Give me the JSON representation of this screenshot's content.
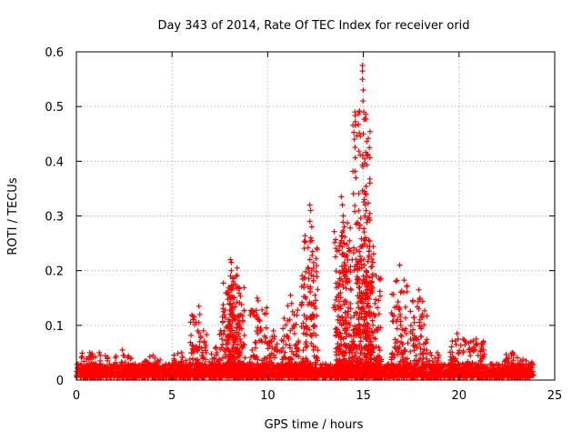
{
  "chart_data": {
    "type": "scatter",
    "title": "Day 343 of 2014, Rate Of TEC Index for receiver orid",
    "xlabel": "GPS time / hours",
    "ylabel": "ROTI / TECUs",
    "xlim": [
      0,
      25
    ],
    "ylim": [
      0,
      0.6
    ],
    "xticks": [
      0,
      5,
      10,
      15,
      20,
      25
    ],
    "xtick_labels": [
      "0",
      "5",
      "10",
      "15",
      "20",
      "25"
    ],
    "yticks": [
      0,
      0.1,
      0.2,
      0.3,
      0.4,
      0.5,
      0.6
    ],
    "ytick_labels": [
      "0",
      "0.1",
      "0.2",
      "0.3",
      "0.4",
      "0.5",
      "0.6"
    ],
    "grid": true,
    "marker": "+",
    "color": "#ff0000",
    "x_data_range": [
      0,
      23.8
    ],
    "baseline": {
      "typical_max": 0.03,
      "typical_min": 0.005
    },
    "features": [
      {
        "x": 0.7,
        "peak": 0.05
      },
      {
        "x": 1.2,
        "peak": 0.05
      },
      {
        "x": 2.4,
        "peak": 0.055
      },
      {
        "x": 4.0,
        "peak": 0.045
      },
      {
        "x": 5.5,
        "peak": 0.05
      },
      {
        "x": 6.4,
        "peak": 0.135
      },
      {
        "x": 7.3,
        "peak": 0.06
      },
      {
        "x": 7.9,
        "peak": 0.155
      },
      {
        "x": 8.1,
        "peak": 0.22
      },
      {
        "x": 8.4,
        "peak": 0.205
      },
      {
        "x": 9.5,
        "peak": 0.15
      },
      {
        "x": 10.3,
        "peak": 0.09
      },
      {
        "x": 11.2,
        "peak": 0.155
      },
      {
        "x": 12.2,
        "peak": 0.32
      },
      {
        "x": 13.9,
        "peak": 0.335
      },
      {
        "x": 14.0,
        "peak": 0.28
      },
      {
        "x": 14.9,
        "peak": 0.575
      },
      {
        "x": 15.1,
        "peak": 0.345
      },
      {
        "x": 15.5,
        "peak": 0.215
      },
      {
        "x": 16.9,
        "peak": 0.21
      },
      {
        "x": 17.9,
        "peak": 0.165
      },
      {
        "x": 18.5,
        "peak": 0.05
      },
      {
        "x": 19.9,
        "peak": 0.085
      },
      {
        "x": 20.9,
        "peak": 0.075
      },
      {
        "x": 22.8,
        "peak": 0.05
      },
      {
        "x": 23.5,
        "peak": 0.035
      }
    ],
    "points": [
      [
        14.95,
        0.575
      ],
      [
        14.95,
        0.565
      ],
      [
        14.95,
        0.55
      ],
      [
        15.0,
        0.53
      ],
      [
        14.98,
        0.51
      ],
      [
        15.02,
        0.49
      ],
      [
        15.0,
        0.45
      ],
      [
        14.97,
        0.39
      ],
      [
        15.05,
        0.345
      ],
      [
        15.1,
        0.34
      ],
      [
        15.05,
        0.33
      ],
      [
        15.1,
        0.32
      ],
      [
        15.08,
        0.3
      ],
      [
        15.12,
        0.26
      ],
      [
        15.1,
        0.255
      ],
      [
        15.05,
        0.21
      ],
      [
        15.15,
        0.2
      ],
      [
        15.0,
        0.19
      ],
      [
        15.2,
        0.17
      ],
      [
        14.9,
        0.16
      ],
      [
        15.1,
        0.15
      ],
      [
        15.0,
        0.13
      ],
      [
        15.3,
        0.12
      ],
      [
        15.5,
        0.215
      ],
      [
        15.45,
        0.18
      ],
      [
        15.6,
        0.14
      ],
      [
        15.5,
        0.1
      ],
      [
        15.7,
        0.09
      ],
      [
        15.4,
        0.07
      ],
      [
        12.2,
        0.32
      ],
      [
        12.25,
        0.31
      ],
      [
        12.2,
        0.29
      ],
      [
        12.3,
        0.28
      ],
      [
        12.25,
        0.26
      ],
      [
        12.3,
        0.255
      ],
      [
        12.35,
        0.235
      ],
      [
        12.2,
        0.22
      ],
      [
        12.3,
        0.2
      ],
      [
        12.4,
        0.19
      ],
      [
        12.25,
        0.17
      ],
      [
        12.3,
        0.14
      ],
      [
        12.35,
        0.12
      ],
      [
        12.45,
        0.1
      ],
      [
        12.3,
        0.08
      ],
      [
        12.5,
        0.06
      ],
      [
        13.85,
        0.335
      ],
      [
        13.9,
        0.32
      ],
      [
        13.95,
        0.3
      ],
      [
        14.0,
        0.28
      ],
      [
        13.9,
        0.27
      ],
      [
        13.85,
        0.255
      ],
      [
        14.0,
        0.25
      ],
      [
        13.95,
        0.23
      ],
      [
        13.9,
        0.2
      ],
      [
        14.0,
        0.19
      ],
      [
        13.95,
        0.17
      ],
      [
        14.05,
        0.145
      ],
      [
        14.2,
        0.12
      ],
      [
        14.3,
        0.1
      ],
      [
        14.1,
        0.085
      ],
      [
        14.4,
        0.07
      ],
      [
        14.5,
        0.06
      ],
      [
        14.6,
        0.05
      ],
      [
        16.9,
        0.21
      ],
      [
        16.95,
        0.16
      ],
      [
        16.9,
        0.13
      ],
      [
        16.95,
        0.1
      ],
      [
        17.0,
        0.08
      ],
      [
        16.8,
        0.06
      ],
      [
        17.9,
        0.165
      ],
      [
        17.95,
        0.15
      ],
      [
        17.9,
        0.13
      ],
      [
        17.95,
        0.11
      ],
      [
        18.0,
        0.08
      ],
      [
        17.8,
        0.06
      ],
      [
        8.05,
        0.22
      ],
      [
        8.1,
        0.215
      ],
      [
        8.1,
        0.2
      ],
      [
        8.05,
        0.19
      ],
      [
        8.2,
        0.18
      ],
      [
        8.3,
        0.175
      ],
      [
        8.4,
        0.205
      ],
      [
        8.35,
        0.19
      ],
      [
        8.45,
        0.17
      ],
      [
        7.95,
        0.155
      ],
      [
        8.0,
        0.14
      ],
      [
        8.1,
        0.13
      ],
      [
        8.2,
        0.12
      ],
      [
        8.3,
        0.11
      ],
      [
        8.0,
        0.1
      ],
      [
        8.4,
        0.095
      ],
      [
        8.5,
        0.085
      ],
      [
        7.9,
        0.08
      ],
      [
        8.6,
        0.07
      ],
      [
        8.7,
        0.06
      ],
      [
        9.45,
        0.15
      ],
      [
        9.5,
        0.145
      ],
      [
        9.55,
        0.11
      ],
      [
        9.6,
        0.09
      ],
      [
        9.7,
        0.07
      ],
      [
        10.3,
        0.09
      ],
      [
        10.35,
        0.08
      ],
      [
        10.2,
        0.07
      ],
      [
        10.4,
        0.06
      ],
      [
        11.2,
        0.155
      ],
      [
        11.25,
        0.14
      ],
      [
        11.3,
        0.125
      ],
      [
        11.15,
        0.11
      ],
      [
        11.35,
        0.1
      ],
      [
        11.4,
        0.085
      ],
      [
        11.1,
        0.075
      ],
      [
        11.5,
        0.065
      ],
      [
        11.6,
        0.055
      ],
      [
        6.4,
        0.135
      ],
      [
        6.45,
        0.12
      ],
      [
        6.4,
        0.105
      ],
      [
        6.35,
        0.09
      ],
      [
        6.5,
        0.08
      ],
      [
        6.45,
        0.07
      ],
      [
        6.3,
        0.06
      ],
      [
        6.6,
        0.05
      ],
      [
        19.9,
        0.085
      ],
      [
        19.95,
        0.075
      ],
      [
        19.85,
        0.065
      ],
      [
        20.0,
        0.05
      ],
      [
        20.9,
        0.075
      ],
      [
        20.95,
        0.065
      ],
      [
        20.85,
        0.055
      ],
      [
        21.0,
        0.045
      ],
      [
        0.7,
        0.05
      ],
      [
        0.75,
        0.045
      ],
      [
        1.2,
        0.05
      ],
      [
        1.25,
        0.045
      ],
      [
        2.4,
        0.055
      ],
      [
        2.45,
        0.045
      ],
      [
        4.0,
        0.045
      ],
      [
        5.5,
        0.05
      ],
      [
        5.55,
        0.042
      ],
      [
        7.3,
        0.06
      ],
      [
        7.35,
        0.05
      ],
      [
        18.5,
        0.05
      ],
      [
        18.55,
        0.045
      ],
      [
        22.8,
        0.05
      ],
      [
        22.85,
        0.045
      ],
      [
        23.5,
        0.035
      ]
    ]
  }
}
